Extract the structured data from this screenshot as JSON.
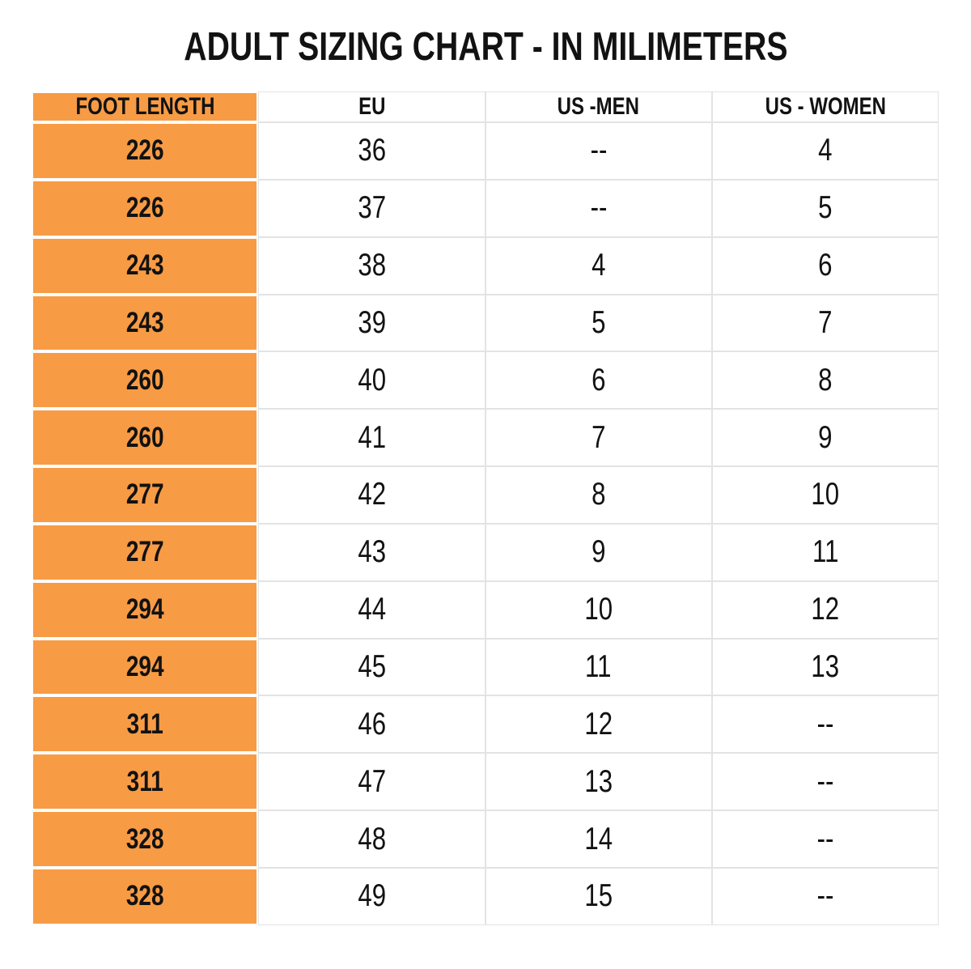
{
  "title": "ADULT SIZING CHART - IN MILIMETERS",
  "colors": {
    "orange": "#F89B45",
    "grid_line": "#e3e3e3",
    "text": "#121212",
    "background": "#ffffff"
  },
  "chart_data": {
    "type": "table",
    "title": "ADULT SIZING CHART - IN MILIMETERS",
    "columns": [
      "FOOT LENGTH",
      "EU",
      "US -MEN",
      "US - WOMEN"
    ],
    "rows": [
      [
        "226",
        "36",
        "--",
        "4"
      ],
      [
        "226",
        "37",
        "--",
        "5"
      ],
      [
        "243",
        "38",
        "4",
        "6"
      ],
      [
        "243",
        "39",
        "5",
        "7"
      ],
      [
        "260",
        "40",
        "6",
        "8"
      ],
      [
        "260",
        "41",
        "7",
        "9"
      ],
      [
        "277",
        "42",
        "8",
        "10"
      ],
      [
        "277",
        "43",
        "9",
        "11"
      ],
      [
        "294",
        "44",
        "10",
        "12"
      ],
      [
        "294",
        "45",
        "11",
        "13"
      ],
      [
        "311",
        "46",
        "12",
        "--"
      ],
      [
        "311",
        "47",
        "13",
        "--"
      ],
      [
        "328",
        "48",
        "14",
        "--"
      ],
      [
        "328",
        "49",
        "15",
        "--"
      ]
    ]
  }
}
